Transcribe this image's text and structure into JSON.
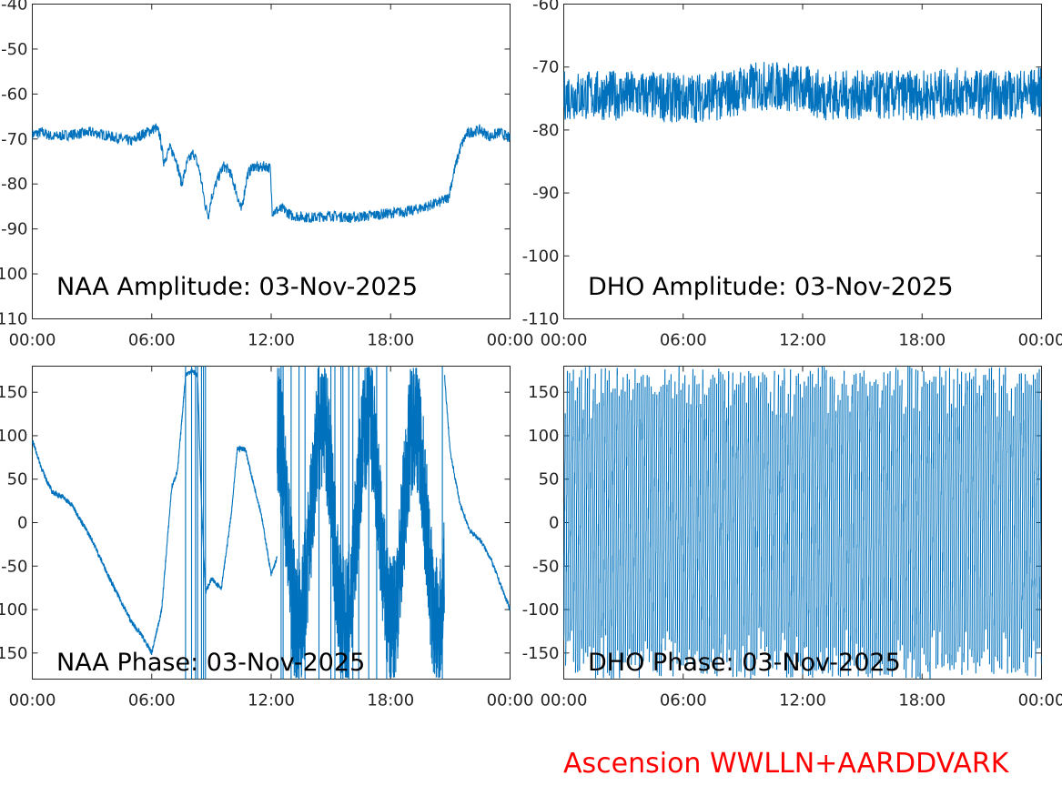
{
  "footer": "Ascension WWLLN+AARDDVARK",
  "series_color": "#0072BD",
  "footer_color": "#FF0000",
  "chart_data": [
    {
      "id": "naa-amp",
      "type": "line",
      "title": "NAA Amplitude: 03-Nov-2025",
      "x_ticks": [
        "00:00",
        "06:00",
        "12:00",
        "18:00",
        "00:00"
      ],
      "xlim": [
        0,
        24
      ],
      "ylim": [
        -110,
        -40
      ],
      "y_ticks": [
        "-40",
        "-50",
        "-60",
        "-70",
        "-80",
        "-90",
        "-100",
        "-110"
      ],
      "noise": 1.2,
      "x": [
        0,
        0.5,
        1,
        2,
        3,
        4,
        4.5,
        5,
        5.5,
        6,
        6.2,
        6.4,
        6.5,
        6.6,
        6.7,
        6.9,
        7.2,
        7.5,
        7.8,
        8.1,
        8.4,
        8.7,
        8.85,
        9,
        9.3,
        9.6,
        9.9,
        10.2,
        10.5,
        10.8,
        11.1,
        11.4,
        11.7,
        11.95,
        12.05,
        12.2,
        12.6,
        13,
        14,
        15,
        16,
        17,
        18,
        19,
        19.8,
        20.5,
        20.9,
        21.2,
        21.5,
        21.8,
        22,
        22.5,
        23,
        23.5,
        24
      ],
      "y": [
        -69,
        -68.5,
        -69.5,
        -69,
        -68.5,
        -69.5,
        -70,
        -70.5,
        -69,
        -68,
        -67.5,
        -69,
        -72,
        -75,
        -74,
        -72,
        -74,
        -80,
        -75,
        -73,
        -77,
        -85,
        -87,
        -83,
        -79,
        -76,
        -77,
        -81,
        -86,
        -78,
        -76,
        -76.5,
        -76,
        -76.5,
        -86,
        -86,
        -85.5,
        -87,
        -87.5,
        -87,
        -87.5,
        -87,
        -86.5,
        -86,
        -85,
        -84,
        -83,
        -77,
        -72,
        -69,
        -68.5,
        -68,
        -69.5,
        -68.5,
        -70
      ]
    },
    {
      "id": "dho-amp",
      "type": "line",
      "title": "DHO Amplitude: 03-Nov-2025",
      "x_ticks": [
        "00:00",
        "06:00",
        "12:00",
        "18:00",
        "00:00"
      ],
      "xlim": [
        0,
        24
      ],
      "ylim": [
        -110,
        -60
      ],
      "y_ticks": [
        "-60",
        "-70",
        "-80",
        "-90",
        "-100",
        "-110"
      ],
      "noise": 4,
      "x": [
        0,
        2,
        4,
        6,
        8,
        9,
        10,
        11,
        12,
        13,
        14,
        16,
        18,
        20,
        22,
        24
      ],
      "y": [
        -74.5,
        -74.5,
        -74.5,
        -75,
        -74.5,
        -73.5,
        -73,
        -73,
        -73.5,
        -74.5,
        -74.5,
        -74.5,
        -74.5,
        -74,
        -74.5,
        -74
      ]
    },
    {
      "id": "naa-phase",
      "type": "line",
      "title": "NAA Phase: 03-Nov-2025",
      "x_ticks": [
        "00:00",
        "06:00",
        "12:00",
        "18:00",
        "00:00"
      ],
      "xlim": [
        0,
        24
      ],
      "ylim": [
        -180,
        180
      ],
      "y_ticks": [
        "150",
        "100",
        "50",
        "0",
        "-50",
        "-100",
        "-150"
      ],
      "noise": 3,
      "x": [
        0,
        0.5,
        1,
        1.5,
        2,
        3,
        4,
        5,
        5.5,
        6,
        6.5,
        7,
        7.3,
        7.7,
        8,
        8.3,
        8.5,
        8.7,
        9,
        9.5,
        10,
        10.3,
        10.7,
        11,
        11.5,
        12,
        12.3
      ],
      "y": [
        95,
        60,
        35,
        30,
        20,
        -20,
        -70,
        -115,
        -130,
        -150,
        -100,
        40,
        60,
        170,
        175,
        170,
        20,
        -80,
        -65,
        -75,
        10,
        85,
        85,
        55,
        10,
        -60,
        -40
      ],
      "x2": [
        20.7,
        21,
        21.5,
        22,
        22.5,
        23,
        23.5,
        24
      ],
      "y2": [
        170,
        80,
        20,
        -10,
        -20,
        -40,
        -70,
        -100
      ],
      "wrap_ranges": [
        [
          12.3,
          20.7
        ]
      ],
      "vertical_lines": [
        7.7,
        8,
        8.2,
        8.3,
        8.5,
        8.6,
        8.7,
        12.5,
        12.6,
        13,
        13.4,
        13.7,
        14.4,
        15,
        15.2,
        15.5,
        15.6,
        15.9,
        16.1,
        16.4,
        16.9,
        17.3,
        17.8,
        20.6
      ]
    },
    {
      "id": "dho-phase",
      "type": "line",
      "title": "DHO Phase: 03-Nov-2025",
      "x_ticks": [
        "00:00",
        "06:00",
        "12:00",
        "18:00",
        "00:00"
      ],
      "xlim": [
        0,
        24
      ],
      "ylim": [
        -180,
        180
      ],
      "y_ticks": [
        "150",
        "100",
        "50",
        "0",
        "-50",
        "-100",
        "-150"
      ],
      "noise": 0,
      "wrap_ranges": [
        [
          0,
          24
        ]
      ],
      "wrap_cycles_per_hour": 10
    }
  ]
}
